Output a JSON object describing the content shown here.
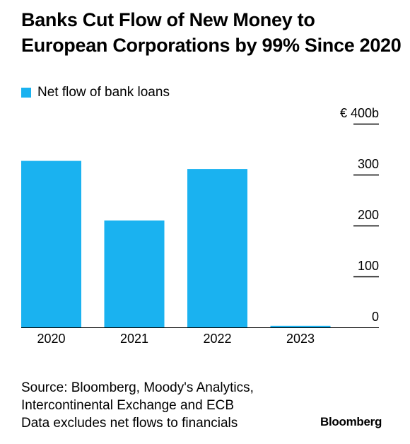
{
  "title": "Banks Cut Flow of New Money to European Corporations by 99% Since 2020",
  "chart_data": {
    "type": "bar",
    "categories": [
      "2020",
      "2021",
      "2022",
      "2023"
    ],
    "series": [
      {
        "name": "Net flow of bank loans",
        "values": [
          327,
          210,
          311,
          3
        ],
        "color": "#1ab2f0"
      }
    ],
    "ylim": [
      0,
      400
    ],
    "y_ticks": [
      "0",
      "100",
      "200",
      "300",
      "€ 400b"
    ],
    "y_tick_values": [
      0,
      100,
      200,
      300,
      400
    ],
    "y_axis_side": "right",
    "legend_placement": "top-left",
    "grid": false
  },
  "footer": {
    "source_lines": [
      "Source: Bloomberg, Moody's Analytics,",
      "Intercontinental Exchange and ECB",
      "Data excludes net flows to financials"
    ],
    "brand": "Bloomberg"
  }
}
